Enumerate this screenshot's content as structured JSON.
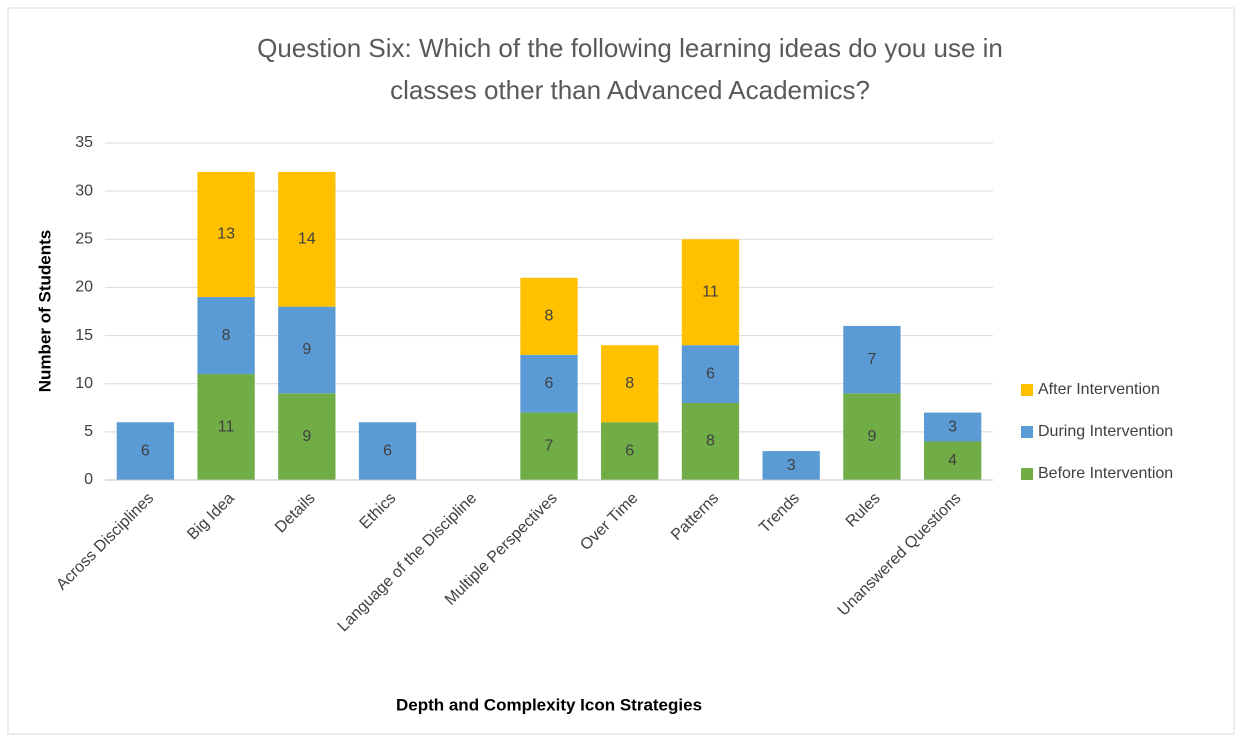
{
  "chart_data": {
    "type": "stacked_bar",
    "title": [
      "Question Six: Which of the following learning ideas do you use in",
      "classes other than Advanced Academics?"
    ],
    "x_label": "Depth and Complexity Icon Strategies",
    "y_label": "Number of Students",
    "categories": [
      "Across Disciplines",
      "Big Idea",
      "Details",
      "Ethics",
      "Language of the Discipline",
      "Multiple Perspectives",
      "Over Time",
      "Patterns",
      "Trends",
      "Rules",
      "Unanswered Questions"
    ],
    "series": [
      {
        "name": "Before Intervention",
        "color": "#70AD47",
        "values": [
          null,
          11,
          9,
          null,
          null,
          7,
          6,
          8,
          null,
          9,
          4
        ]
      },
      {
        "name": "During Intervention",
        "color": "#5B9BD5",
        "values": [
          6,
          8,
          9,
          6,
          null,
          6,
          null,
          6,
          3,
          7,
          3
        ]
      },
      {
        "name": "After Intervention",
        "color": "#FFC000",
        "values": [
          null,
          13,
          14,
          null,
          null,
          8,
          8,
          11,
          null,
          null,
          null
        ]
      }
    ],
    "ylim": [
      0,
      35
    ],
    "yticks": [
      0,
      5,
      10,
      15,
      20,
      25,
      30,
      35
    ],
    "grid": true,
    "legend": "right"
  }
}
